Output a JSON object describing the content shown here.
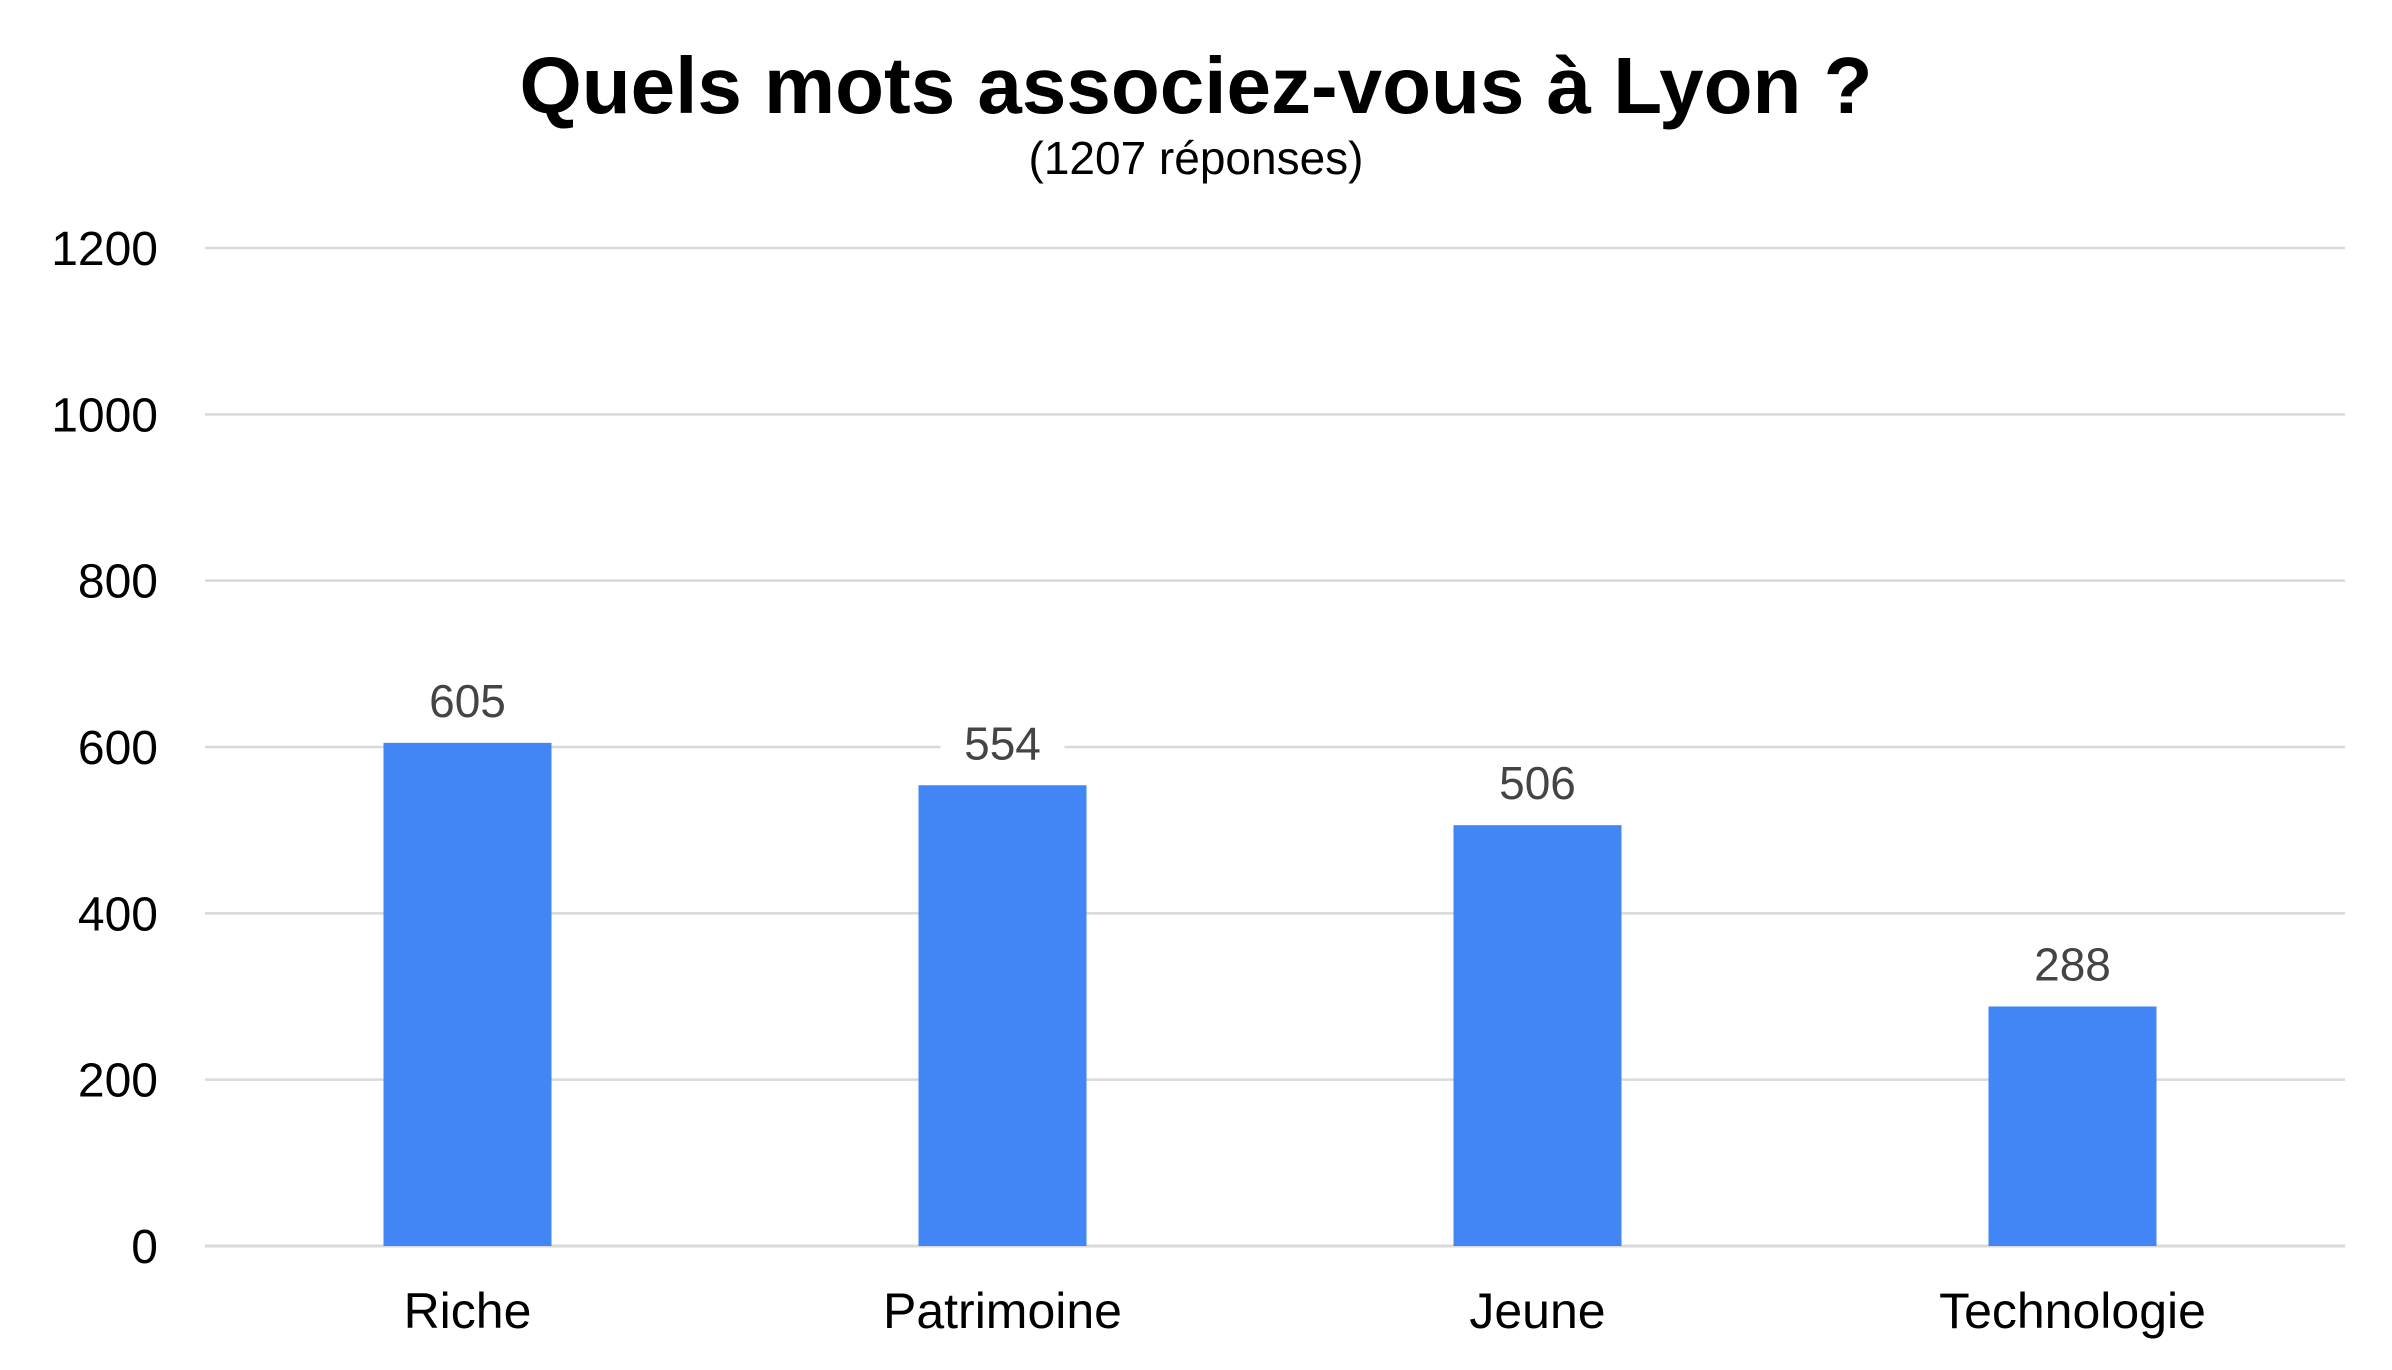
{
  "chart_data": {
    "type": "bar",
    "title": "Quels mots associez-vous à Lyon ?",
    "subtitle": "(1207 réponses)",
    "categories": [
      "Riche",
      "Patrimoine",
      "Jeune",
      "Technologie"
    ],
    "values": [
      605,
      554,
      506,
      288
    ],
    "data_labels": [
      "605",
      "554",
      "506",
      "288"
    ],
    "xlabel": "",
    "ylabel": "",
    "ylim": [
      0,
      1200
    ],
    "yticks": [
      0,
      200,
      400,
      600,
      800,
      1000,
      1200
    ],
    "ytick_labels": [
      "0",
      "200",
      "400",
      "600",
      "800",
      "1000",
      "1200"
    ],
    "grid": true,
    "legend": "none",
    "bar_color": "#4285f4",
    "grid_color": "#d9d9d9"
  }
}
